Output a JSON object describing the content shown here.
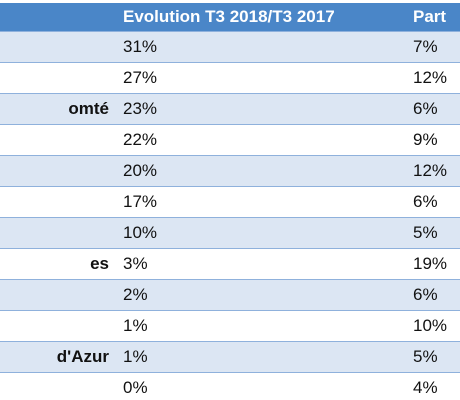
{
  "header": {
    "region": "",
    "evolution": "Evolution T3 2018/T3 2017",
    "part": "Part"
  },
  "rows": [
    {
      "region": "",
      "evolution": "31%",
      "part": "7%"
    },
    {
      "region": "",
      "evolution": "27%",
      "part": "12%"
    },
    {
      "region": "omté",
      "evolution": "23%",
      "part": "6%"
    },
    {
      "region": "",
      "evolution": "22%",
      "part": "9%"
    },
    {
      "region": "",
      "evolution": "20%",
      "part": "12%"
    },
    {
      "region": "",
      "evolution": "17%",
      "part": "6%"
    },
    {
      "region": "",
      "evolution": "10%",
      "part": "5%"
    },
    {
      "region": "es",
      "evolution": "3%",
      "part": "19%"
    },
    {
      "region": "",
      "evolution": "2%",
      "part": "6%"
    },
    {
      "region": "",
      "evolution": "1%",
      "part": "10%"
    },
    {
      "region": "d'Azur",
      "evolution": "1%",
      "part": "5%"
    },
    {
      "region": "",
      "evolution": "0%",
      "part": "4%"
    }
  ],
  "colors": {
    "header_bg": "#4a86c8",
    "band_bg": "#dce6f3",
    "row_bg": "#ffffff",
    "border": "#8fb1dc"
  }
}
